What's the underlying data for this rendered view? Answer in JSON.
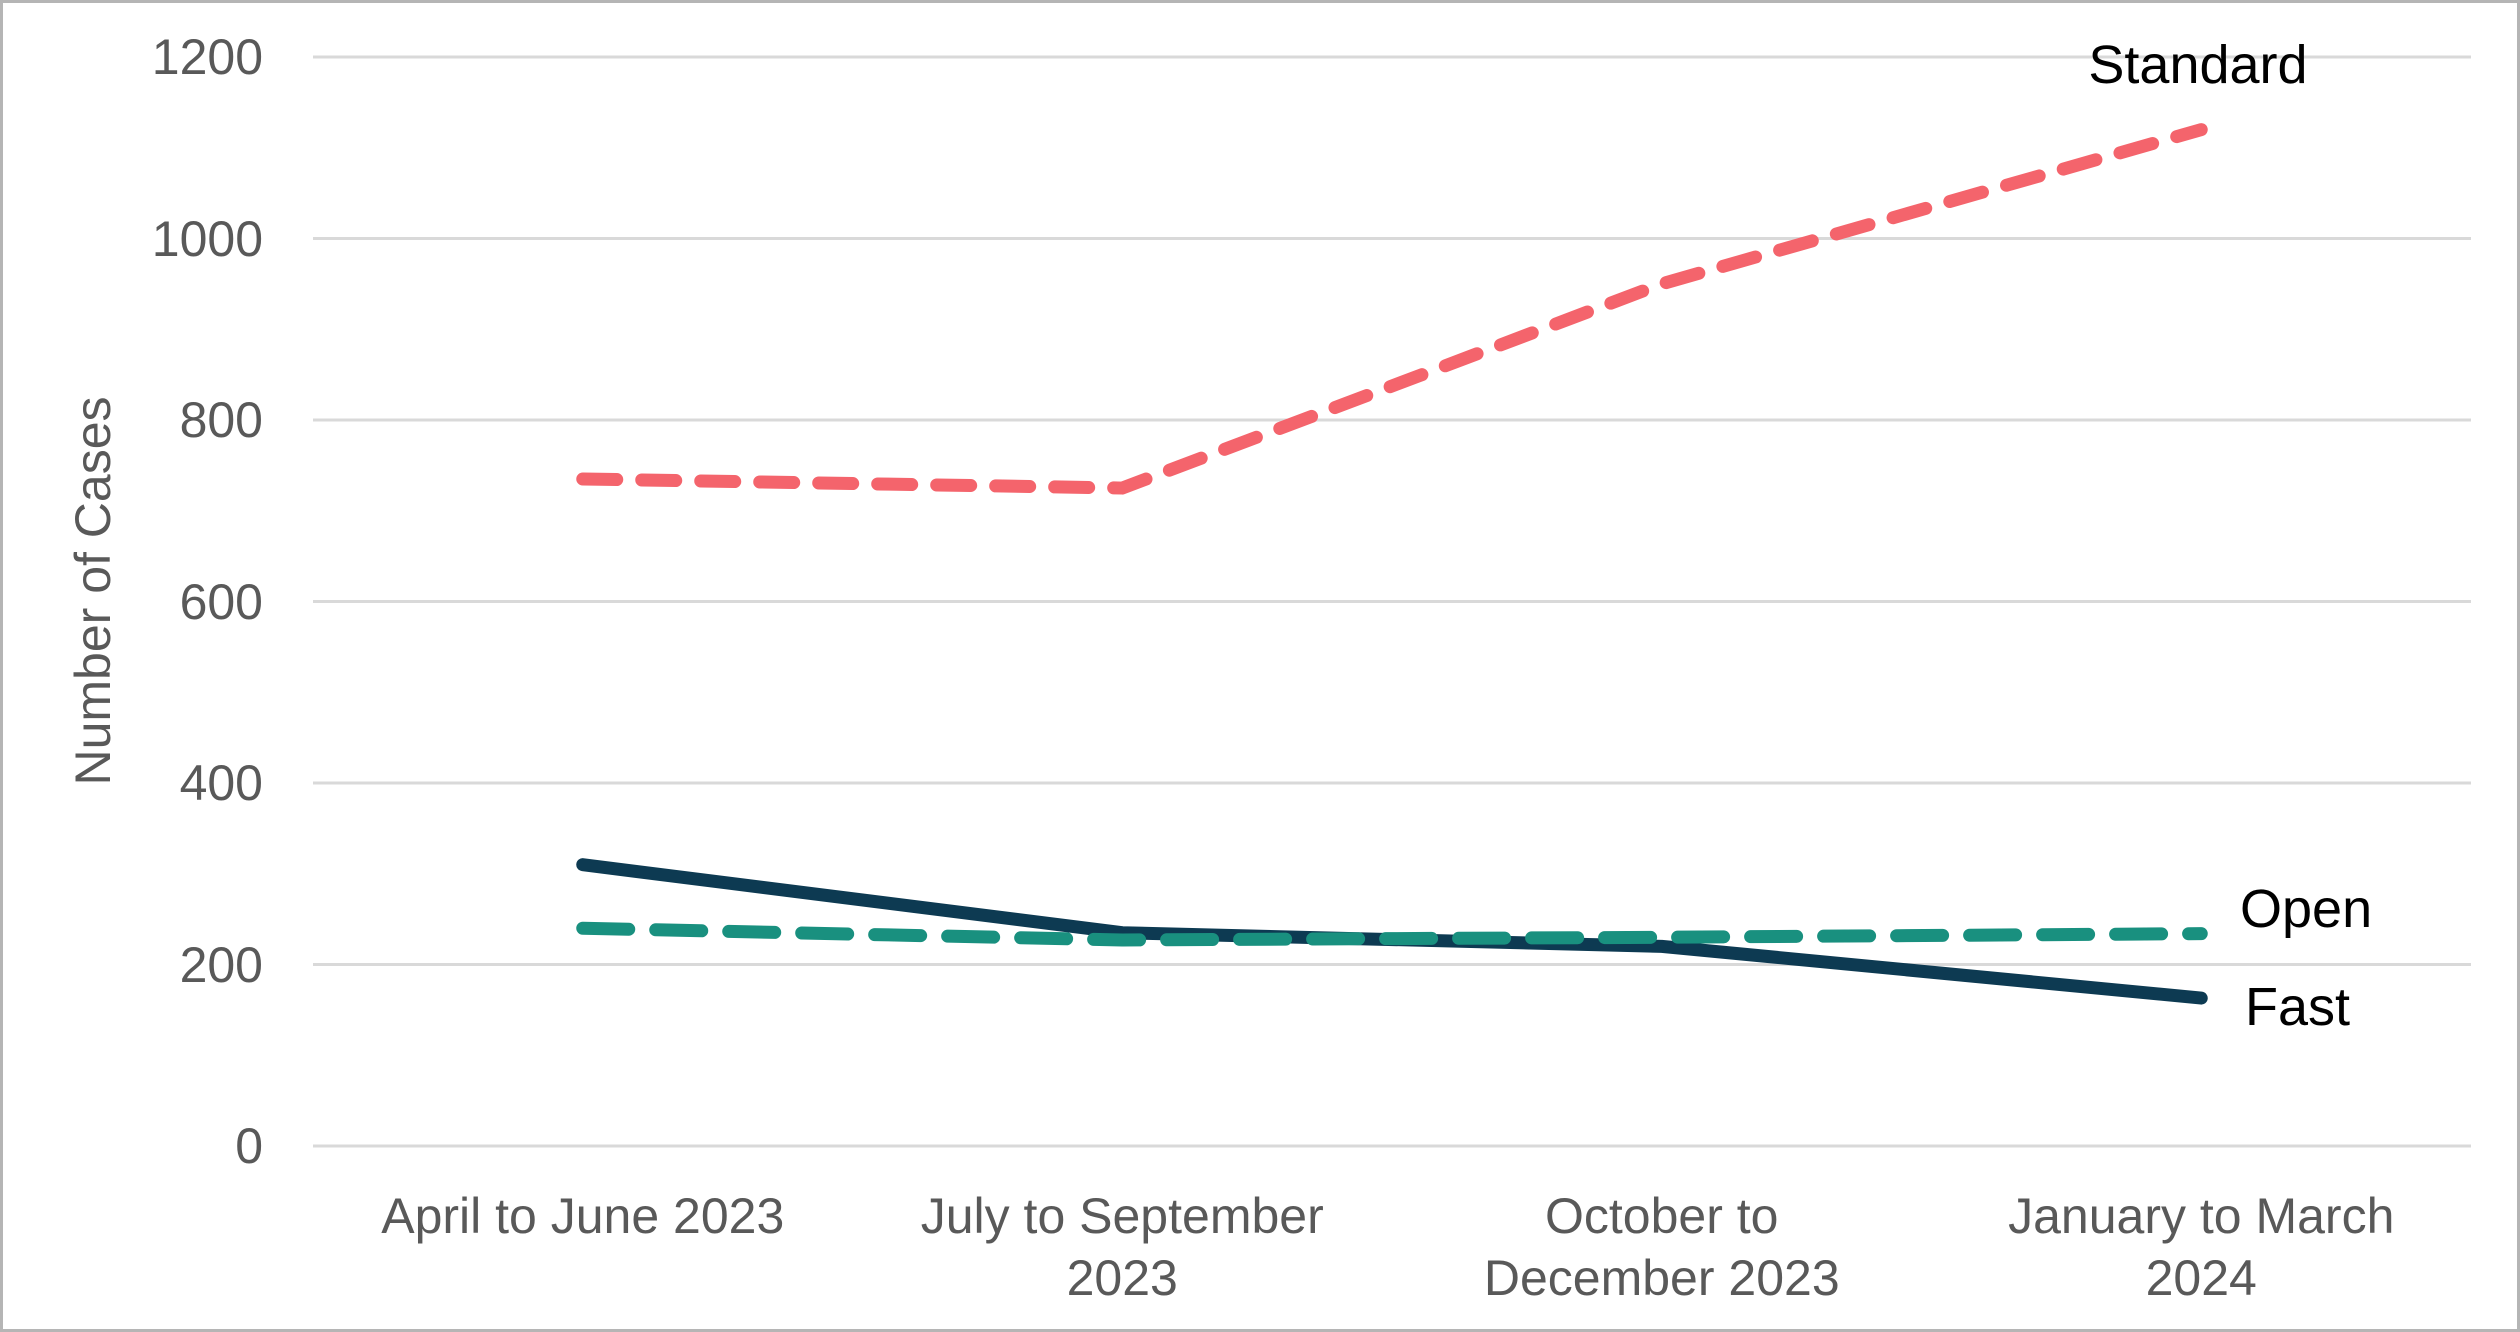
{
  "figure": {
    "background": "#ffffff",
    "border_color": "#b5b5b5",
    "gridline_color": "#d9d9d9",
    "tick_text_color": "#595959",
    "series_label_color": "#000000"
  },
  "axes": {
    "y_title": "Number of Cases",
    "y_tick_labels": [
      "0",
      "200",
      "400",
      "600",
      "800",
      "1000",
      "1200"
    ],
    "x_tick_label_lines": [
      [
        "April to June 2023"
      ],
      [
        "July to September",
        "2023"
      ],
      [
        "October to",
        "December 2023"
      ],
      [
        "January to March",
        "2024"
      ]
    ]
  },
  "chart_data": {
    "type": "line",
    "title": "",
    "xlabel": "",
    "ylabel": "Number of Cases",
    "ylim": [
      0,
      1200
    ],
    "yticks": [
      0,
      200,
      400,
      600,
      800,
      1000,
      1200
    ],
    "grid": "horizontal",
    "legend_position": "end-of-line labels",
    "categories": [
      "April to June 2023",
      "July to September 2023",
      "October to December 2023",
      "January to March 2024"
    ],
    "series": [
      {
        "name": "Fast",
        "color": "#0d3a52",
        "line_style": "solid",
        "values": [
          310,
          235,
          220,
          163
        ]
      },
      {
        "name": "Open",
        "color": "#19907f",
        "line_style": "dashed",
        "values": [
          240,
          227,
          230,
          234
        ]
      },
      {
        "name": "Standard",
        "color": "#f4646c",
        "line_style": "dashed",
        "values": [
          735,
          725,
          950,
          1120
        ]
      }
    ]
  }
}
